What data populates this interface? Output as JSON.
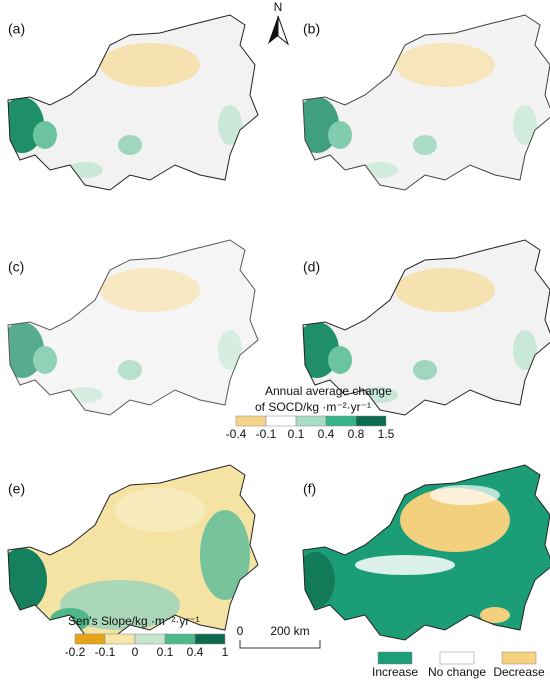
{
  "panels": [
    {
      "label": "(a)"
    },
    {
      "label": "(b)"
    },
    {
      "label": "(c)"
    },
    {
      "label": "(d)"
    },
    {
      "label": "(e)"
    },
    {
      "label": "(f)"
    }
  ],
  "north": "N",
  "legend_change": {
    "title_lines": [
      "Annual average change",
      "of SOCD/kg ·m⁻²·yr⁻¹"
    ],
    "labels": [
      "-0.4",
      "-0.1",
      "0.1",
      "0.4",
      "0.8",
      "1.5"
    ],
    "colors": [
      "#f6d48c",
      "#ffffff",
      "#a9dcc4",
      "#35b487",
      "#0b6b4e"
    ]
  },
  "legend_slope": {
    "title": "Sen's Slope/kg ·m⁻²·yr⁻¹",
    "labels": [
      "-0.2",
      "-0.1",
      "0",
      "0.1",
      "0.4",
      "1"
    ],
    "colors": [
      "#e8a418",
      "#f7e6a8",
      "#c6e4cf",
      "#4fb78c",
      "#0d6a4f"
    ]
  },
  "scale_bar": {
    "labels": [
      "0",
      "200 km"
    ]
  },
  "legend_trend": {
    "items": [
      {
        "label": "Increase",
        "color": "#1b9e77"
      },
      {
        "label": "No change",
        "color": "#ffffff"
      },
      {
        "label": "Decrease",
        "color": "#f5d37e"
      }
    ]
  }
}
